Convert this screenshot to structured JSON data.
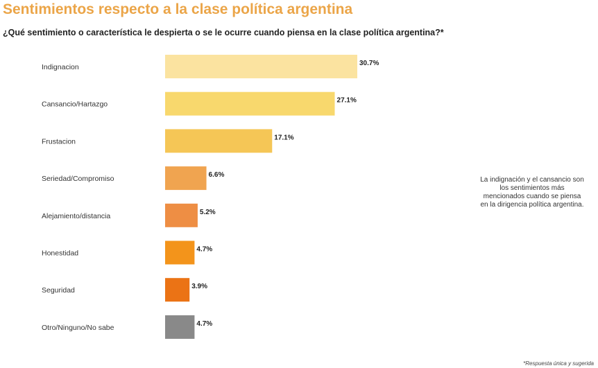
{
  "header": {
    "title": "Sentimientos respecto a la clase política argentina",
    "question": "¿Qué sentimiento o característica le despierta o se le ocurre cuando piensa en la clase política argentina?*"
  },
  "annotation": "La indignación y el cansancio son los sentimientos más mencionados cuando se piensa en la dirigencia política argentina.",
  "footnote": "*Respuesta única y sugerida",
  "chart_data": {
    "type": "bar",
    "orientation": "horizontal",
    "categories": [
      "Indignacion",
      "Cansancio/Hartazgo",
      "Frustacion",
      "Seriedad/Compromiso",
      "Alejamiento/distancia",
      "Honestidad",
      "Seguridad",
      "Otro/Ninguno/No sabe"
    ],
    "values": [
      30.7,
      27.1,
      17.1,
      6.6,
      5.2,
      4.7,
      3.9,
      4.7
    ],
    "value_labels": [
      "30.7%",
      "27.1%",
      "17.1%",
      "6.6%",
      "5.2%",
      "4.7%",
      "3.9%",
      "4.7%"
    ],
    "colors": [
      "#fbe3a0",
      "#f8d86d",
      "#f5c656",
      "#f0a450",
      "#ee8e44",
      "#f3941b",
      "#eb7315",
      "#898989"
    ],
    "xlim": [
      0,
      30.7
    ],
    "grid": false,
    "legend": "none"
  }
}
